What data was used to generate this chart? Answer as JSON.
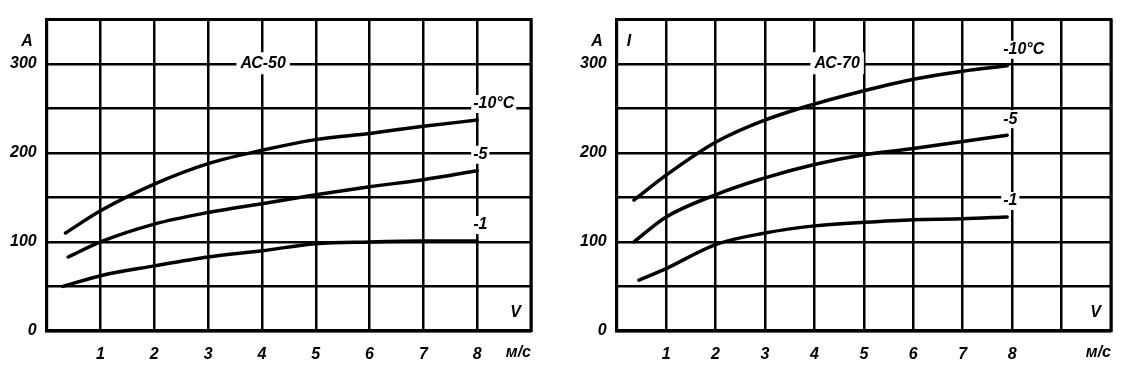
{
  "chart_data": [
    {
      "type": "line",
      "title": "АС-50",
      "xlabel": "V",
      "ylabel": "А",
      "annotations": [
        "м/с"
      ],
      "grid": true,
      "legend": false,
      "marker": "none",
      "xlim": [
        0,
        9
      ],
      "xticks": [
        {
          "value": 0,
          "label": null
        },
        1,
        2,
        3,
        4,
        5,
        6,
        7,
        8,
        {
          "value": 9,
          "label": null
        }
      ],
      "ylim": [
        0,
        350
      ],
      "yticks": [
        0,
        {
          "value": 50,
          "label": null
        },
        100,
        {
          "value": 150,
          "label": null
        },
        200,
        {
          "value": 250,
          "label": null
        },
        300,
        {
          "value": 350,
          "label": null
        }
      ],
      "series": [
        {
          "name": "-10°C",
          "color": "#000000",
          "x": [
            0.35,
            1,
            2,
            3,
            4,
            5,
            6,
            7,
            8
          ],
          "values": [
            110,
            135,
            165,
            188,
            203,
            215,
            222,
            230,
            237
          ]
        },
        {
          "name": "-5",
          "color": "#000000",
          "x": [
            0.4,
            1,
            2,
            3,
            4,
            5,
            6,
            7,
            8
          ],
          "values": [
            83,
            100,
            120,
            133,
            143,
            153,
            162,
            170,
            180
          ]
        },
        {
          "name": "-1",
          "color": "#000000",
          "x": [
            0.3,
            1,
            2,
            3,
            4,
            5,
            6,
            7,
            8
          ],
          "values": [
            50,
            62,
            73,
            83,
            90,
            98,
            100,
            101,
            101
          ]
        }
      ]
    },
    {
      "type": "line",
      "title": "АС-70",
      "xlabel": "V",
      "ylabel": "А",
      "annotations": [
        "м/с",
        "I"
      ],
      "grid": true,
      "legend": false,
      "marker": "none",
      "xlim": [
        0,
        10
      ],
      "xticks": [
        {
          "value": 0,
          "label": null
        },
        1,
        2,
        3,
        4,
        5,
        6,
        7,
        8,
        {
          "value": 9,
          "label": null
        },
        {
          "value": 10,
          "label": null
        }
      ],
      "ylim": [
        0,
        350
      ],
      "yticks": [
        0,
        {
          "value": 50,
          "label": null
        },
        100,
        {
          "value": 150,
          "label": null
        },
        200,
        {
          "value": 250,
          "label": null
        },
        300,
        {
          "value": 350,
          "label": null
        }
      ],
      "series": [
        {
          "name": "-10°C",
          "color": "#000000",
          "x": [
            0.35,
            1,
            2,
            3,
            4,
            5,
            6,
            7,
            7.9
          ],
          "values": [
            147,
            175,
            212,
            237,
            255,
            270,
            283,
            292,
            298
          ]
        },
        {
          "name": "-5",
          "color": "#000000",
          "x": [
            0.35,
            1,
            2,
            3,
            4,
            5,
            6,
            7,
            7.9
          ],
          "values": [
            100,
            128,
            153,
            172,
            187,
            198,
            205,
            213,
            220
          ]
        },
        {
          "name": "-1",
          "color": "#000000",
          "x": [
            0.45,
            1,
            2,
            3,
            4,
            5,
            6,
            7,
            7.9
          ],
          "values": [
            57,
            70,
            97,
            110,
            118,
            122,
            125,
            126,
            128
          ]
        }
      ]
    }
  ]
}
